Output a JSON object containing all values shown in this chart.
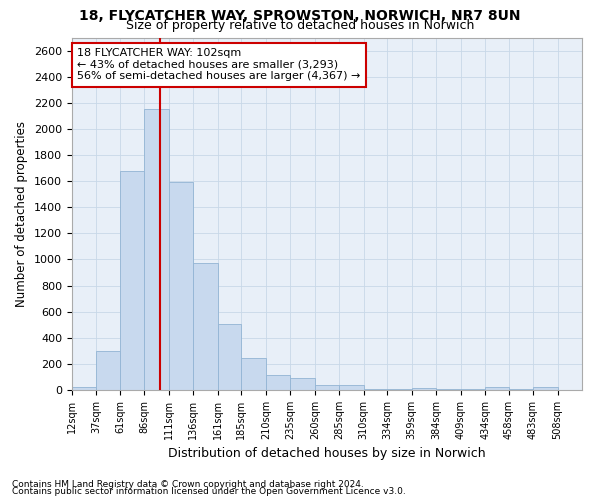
{
  "title_line1": "18, FLYCATCHER WAY, SPROWSTON, NORWICH, NR7 8UN",
  "title_line2": "Size of property relative to detached houses in Norwich",
  "xlabel": "Distribution of detached houses by size in Norwich",
  "ylabel": "Number of detached properties",
  "bar_color": "#c8d9ee",
  "bar_edge_color": "#92b4d4",
  "grid_color": "#c8d8e8",
  "background_color": "#e8eff8",
  "property_line_value": 102,
  "property_line_color": "#cc0000",
  "annotation_text": "18 FLYCATCHER WAY: 102sqm\n← 43% of detached houses are smaller (3,293)\n56% of semi-detached houses are larger (4,367) →",
  "annotation_box_color": "#ffffff",
  "annotation_box_edge": "#cc0000",
  "footnote1": "Contains HM Land Registry data © Crown copyright and database right 2024.",
  "footnote2": "Contains public sector information licensed under the Open Government Licence v3.0.",
  "bin_edges": [
    12,
    37,
    61,
    86,
    111,
    136,
    161,
    185,
    210,
    235,
    260,
    285,
    310,
    334,
    359,
    384,
    409,
    434,
    458,
    483,
    508,
    533
  ],
  "bin_labels": [
    "12sqm",
    "37sqm",
    "61sqm",
    "86sqm",
    "111sqm",
    "136sqm",
    "161sqm",
    "185sqm",
    "210sqm",
    "235sqm",
    "260sqm",
    "285sqm",
    "310sqm",
    "334sqm",
    "359sqm",
    "384sqm",
    "409sqm",
    "434sqm",
    "458sqm",
    "483sqm",
    "508sqm"
  ],
  "bar_heights": [
    20,
    300,
    1680,
    2150,
    1590,
    970,
    505,
    245,
    115,
    95,
    40,
    35,
    10,
    5,
    15,
    5,
    5,
    20,
    5,
    20,
    0
  ],
  "ylim": [
    0,
    2700
  ],
  "yticks": [
    0,
    200,
    400,
    600,
    800,
    1000,
    1200,
    1400,
    1600,
    1800,
    2000,
    2200,
    2400,
    2600
  ]
}
